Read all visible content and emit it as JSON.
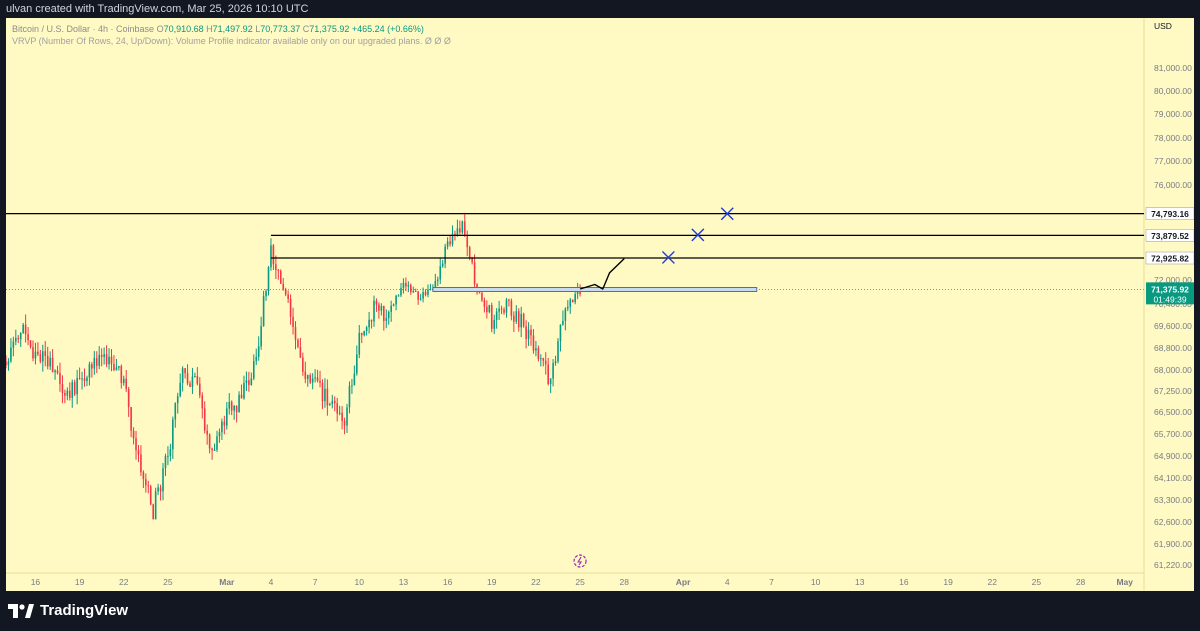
{
  "header": {
    "author_line": "ulvan created with TradingView.com, Mar 25, 2026 10:10 UTC"
  },
  "legend": {
    "symbol": "Bitcoin / U.S. Dollar · 4h · Coinbase",
    "o_label": "O",
    "o": "70,910.68",
    "h_label": "H",
    "h": "71,497.92",
    "l_label": "L",
    "l": "70,773.37",
    "c_label": "C",
    "c": "71,375.92",
    "change": "+465.24 (+0.66%)",
    "indicator": "VRVP (Number Of Rows, 24, Up/Down): Volume Profile indicator available only on our upgraded plans.",
    "indicator_icons": "Ø Ø Ø"
  },
  "colors": {
    "background": "#fff9c4",
    "up": "#089981",
    "down": "#f23645",
    "drawing": "#000000",
    "marks": "#1f3bd6",
    "zone_fill": "#c9dcef",
    "frame": "#131722"
  },
  "footer": {
    "brand": "TradingView"
  },
  "chart_data": {
    "type": "candlestick",
    "currency": "USD",
    "ylim": [
      60700,
      82500
    ],
    "y_ticks": [
      "81,000.00",
      "80,000.00",
      "79,000.00",
      "78,000.00",
      "77,000.00",
      "76,000.00",
      "72,000.00",
      "70,400.00",
      "69,600.00",
      "68,800.00",
      "68,000.00",
      "67,250.00",
      "66,500.00",
      "65,700.00",
      "64,900.00",
      "64,100.00",
      "63,300.00",
      "62,600.00",
      "61,900.00",
      "61,220.00"
    ],
    "x_ticks": [
      "16",
      "19",
      "22",
      "25",
      "Mar",
      "4",
      "7",
      "10",
      "13",
      "16",
      "19",
      "22",
      "25",
      "28",
      "Apr",
      "4",
      "7",
      "10",
      "13",
      "16",
      "19",
      "22",
      "25",
      "28",
      "May"
    ],
    "candle_start_date": "Feb 14",
    "candle_interval": "4h",
    "price_waypoints": [
      {
        "date": "Feb 14",
        "price": 68300
      },
      {
        "date": "Feb 15",
        "price": 69600
      },
      {
        "date": "Feb 16",
        "price": 68600
      },
      {
        "date": "Feb 17",
        "price": 68100
      },
      {
        "date": "Feb 18",
        "price": 67100
      },
      {
        "date": "Feb 19",
        "price": 67600
      },
      {
        "date": "Feb 20",
        "price": 68500
      },
      {
        "date": "Feb 21",
        "price": 68500
      },
      {
        "date": "Feb 22",
        "price": 67500
      },
      {
        "date": "Feb 23",
        "price": 64700
      },
      {
        "date": "Feb 24",
        "price": 63000
      },
      {
        "date": "Feb 25",
        "price": 64900
      },
      {
        "date": "Feb 26",
        "price": 68100
      },
      {
        "date": "Feb 27",
        "price": 67400
      },
      {
        "date": "Feb 28",
        "price": 64900
      },
      {
        "date": "Mar 1",
        "price": 66500
      },
      {
        "date": "Mar 2",
        "price": 67000
      },
      {
        "date": "Mar 3",
        "price": 68200
      },
      {
        "date": "Mar 4",
        "price": 73200
      },
      {
        "date": "Mar 5",
        "price": 70900
      },
      {
        "date": "Mar 6",
        "price": 68200
      },
      {
        "date": "Mar 7",
        "price": 67400
      },
      {
        "date": "Mar 8",
        "price": 66900
      },
      {
        "date": "Mar 9",
        "price": 66100
      },
      {
        "date": "Mar 10",
        "price": 69100
      },
      {
        "date": "Mar 11",
        "price": 70300
      },
      {
        "date": "Mar 12",
        "price": 69900
      },
      {
        "date": "Mar 13",
        "price": 71900
      },
      {
        "date": "Mar 14",
        "price": 70700
      },
      {
        "date": "Mar 15",
        "price": 71200
      },
      {
        "date": "Mar 16",
        "price": 73600
      },
      {
        "date": "Mar 17",
        "price": 74500
      },
      {
        "date": "Mar 18",
        "price": 71500
      },
      {
        "date": "Mar 19",
        "price": 69800
      },
      {
        "date": "Mar 20",
        "price": 70400
      },
      {
        "date": "Mar 21",
        "price": 69700
      },
      {
        "date": "Mar 22",
        "price": 68800
      },
      {
        "date": "Mar 23",
        "price": 67600
      },
      {
        "date": "Mar 24",
        "price": 70300
      },
      {
        "date": "Mar 25",
        "price": 71376
      }
    ],
    "candle_extremes": {
      "high": 76000,
      "low": 62700
    },
    "horizontal_levels": [
      {
        "price": 74793.16,
        "label": "74,793.16",
        "from_date": "Feb 14"
      },
      {
        "price": 73879.52,
        "label": "73,879.52",
        "from_date": "Mar 4"
      },
      {
        "price": 72925.82,
        "label": "72,925.82",
        "from_date": "Mar 4"
      }
    ],
    "current_price": {
      "label": "71,375.92",
      "countdown": "01:49:39"
    },
    "zone": {
      "price_top": 71500,
      "price_bottom": 71280,
      "from_date": "Mar 15",
      "to_date": "Apr 6"
    },
    "projection_path": [
      {
        "date": "Mar 25",
        "price": 71400
      },
      {
        "date": "Mar 26",
        "price": 71700
      },
      {
        "date": "Mar 26",
        "price": 71400
      },
      {
        "date": "Mar 27",
        "price": 72300
      },
      {
        "date": "Mar 28",
        "price": 72900
      }
    ],
    "x_marks": [
      {
        "date": "Mar 31",
        "price": 72950
      },
      {
        "date": "Apr 2",
        "price": 73900
      },
      {
        "date": "Apr 4",
        "price": 74790
      }
    ]
  }
}
